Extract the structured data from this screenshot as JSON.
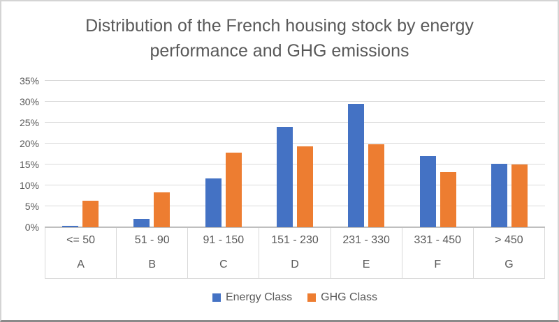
{
  "colors": {
    "energy": "#4472C4",
    "ghg": "#ED7D31",
    "grid": "#D9D9D9",
    "axis": "#BFBFBF",
    "text": "#595959",
    "border": "#D4D4D4",
    "border_bottom": "#8A8A8A",
    "background": "#FFFFFF"
  },
  "chart_data": {
    "type": "bar",
    "title": "Distribution of the French housing stock by energy performance and GHG emissions",
    "xlabel": "",
    "ylabel": "",
    "categories": [
      "<= 50",
      "51 - 90",
      "91 - 150",
      "151 - 230",
      "231 - 330",
      "331 - 450",
      "> 450"
    ],
    "category_letters": [
      "A",
      "B",
      "C",
      "D",
      "E",
      "F",
      "G"
    ],
    "series": [
      {
        "name": "Energy Class",
        "color": "#4472C4",
        "values": [
          0.3,
          2.0,
          11.6,
          24.0,
          29.5,
          17.0,
          15.2
        ]
      },
      {
        "name": "GHG Class",
        "color": "#ED7D31",
        "values": [
          6.3,
          8.4,
          17.8,
          19.4,
          19.9,
          13.1,
          15.0
        ]
      }
    ],
    "ylim": [
      0,
      35
    ],
    "ytick_step": 5,
    "yticks": [
      "0%",
      "5%",
      "10%",
      "15%",
      "20%",
      "25%",
      "30%",
      "35%"
    ],
    "grid": true,
    "legend_position": "bottom"
  }
}
